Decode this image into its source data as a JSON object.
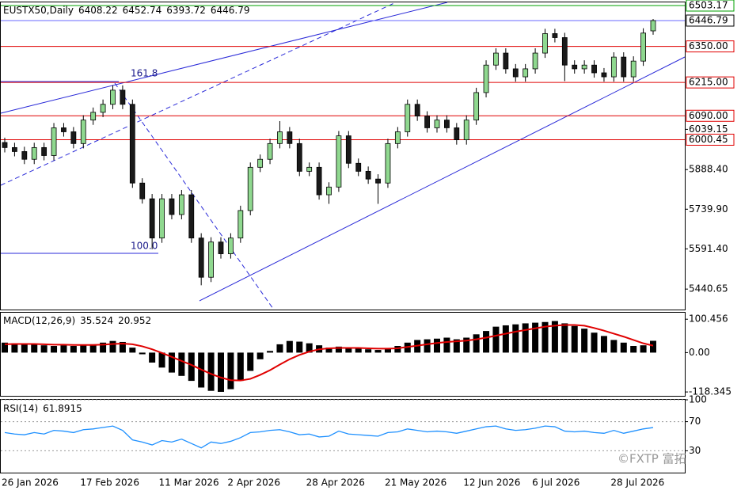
{
  "chart_data": [
    {
      "type": "candlestick",
      "title": "EUSTX50,Daily",
      "categories": [
        "26 Jan 2026",
        null,
        null,
        null,
        null,
        null,
        null,
        null,
        "17 Feb 2026",
        null,
        null,
        null,
        null,
        null,
        null,
        null,
        "11 Mar 2026",
        null,
        null,
        null,
        null,
        null,
        null,
        "2 Apr 2026",
        null,
        null,
        null,
        null,
        null,
        null,
        null,
        "28 Apr 2026",
        null,
        null,
        null,
        null,
        null,
        null,
        null,
        "21 May 2026",
        null,
        null,
        null,
        null,
        null,
        null,
        null,
        "12 Jun 2026",
        null,
        null,
        null,
        null,
        null,
        null,
        "6 Jul 2026",
        null,
        null,
        null,
        null,
        null,
        null,
        null,
        "28 Jul 2026",
        null,
        null,
        null,
        null
      ],
      "open": [
        5990,
        5971,
        5956,
        5927,
        5971,
        5941,
        6045,
        6030,
        5986,
        6074,
        6103,
        6133,
        6186,
        6133,
        5838,
        5779,
        5632,
        5779,
        5720,
        5794,
        5632,
        5485,
        5617,
        5573,
        5632,
        5735,
        5897,
        5927,
        5986,
        6030,
        5986,
        5882,
        5897,
        5794,
        5823,
        6015,
        5912,
        5882,
        5853,
        5838,
        5986,
        6030,
        6133,
        6089,
        6045,
        6074,
        6045,
        6000,
        6074,
        6177,
        6280,
        6325,
        6266,
        6236,
        6266,
        6325,
        6398,
        6383,
        6280,
        6266,
        6280,
        6251,
        6236,
        6310,
        6236,
        6295,
        6408.22
      ],
      "high": [
        6008,
        5989,
        5974,
        5989,
        5989,
        6063,
        6063,
        6048,
        6092,
        6121,
        6151,
        6204,
        6204,
        6151,
        5856,
        5797,
        5797,
        5797,
        5812,
        5812,
        5650,
        5635,
        5635,
        5650,
        5753,
        5915,
        5945,
        6004,
        6070,
        6048,
        6004,
        5915,
        5915,
        5841,
        6033,
        6033,
        5930,
        5900,
        5871,
        6004,
        6048,
        6151,
        6151,
        6107,
        6092,
        6092,
        6063,
        6092,
        6195,
        6298,
        6343,
        6343,
        6284,
        6284,
        6343,
        6416,
        6416,
        6401,
        6298,
        6298,
        6298,
        6269,
        6328,
        6328,
        6313,
        6418,
        6452.74
      ],
      "low": [
        5953,
        5938,
        5909,
        5909,
        5923,
        5923,
        6012,
        5968,
        5968,
        6056,
        6085,
        6115,
        6115,
        5820,
        5761,
        5590,
        5614,
        5702,
        5702,
        5614,
        5455,
        5467,
        5555,
        5555,
        5614,
        5717,
        5879,
        5909,
        5968,
        5968,
        5864,
        5864,
        5776,
        5760,
        5805,
        5894,
        5864,
        5835,
        5760,
        5820,
        5968,
        6012,
        6071,
        6027,
        6027,
        6027,
        5982,
        5982,
        6056,
        6159,
        6262,
        6248,
        6218,
        6218,
        6248,
        6307,
        6365,
        6220,
        6248,
        6248,
        6233,
        6218,
        6218,
        6218,
        6218,
        6277,
        6393.72
      ],
      "close": [
        5971,
        5956,
        5927,
        5971,
        5941,
        6045,
        6030,
        5986,
        6074,
        6103,
        6133,
        6186,
        6133,
        5838,
        5779,
        5632,
        5779,
        5720,
        5794,
        5632,
        5485,
        5617,
        5573,
        5632,
        5735,
        5897,
        5927,
        5986,
        6030,
        5986,
        5882,
        5897,
        5794,
        5823,
        6015,
        5912,
        5882,
        5853,
        5838,
        5986,
        6030,
        6133,
        6089,
        6045,
        6074,
        6045,
        6000,
        6074,
        6177,
        6280,
        6325,
        6266,
        6236,
        6266,
        6325,
        6398,
        6383,
        6280,
        6266,
        6280,
        6251,
        6236,
        6310,
        6236,
        6295,
        6400,
        6446.79
      ],
      "up_color": "#8fd88f",
      "down_color": "#1a1a1a",
      "ylim": [
        5364,
        6515
      ],
      "yticks": [
        5440.65,
        {
          "value": 5591.4,
          "label": "5591.40"
        },
        {
          "value": 5739.9,
          "label": "5739.90"
        },
        {
          "value": 5888.4,
          "label": "5888.40"
        },
        6039.15
      ],
      "levels": [
        {
          "value": 6503.17,
          "label": "6503.17",
          "color": "#00a000"
        },
        {
          "value": 6350,
          "label": "6350.00",
          "color": "#e00000"
        },
        {
          "value": 6215,
          "label": "6215.00",
          "color": "#e00000"
        },
        {
          "value": 6090,
          "label": "6090.00",
          "color": "#e00000"
        },
        {
          "value": 6000.45,
          "label": "6000.45",
          "color": "#e00000"
        }
      ],
      "annotations": [
        "161.8",
        "100.0"
      ],
      "watermark": "©FXTP 富拓"
    },
    {
      "type": "macd",
      "title": "MACD(12,26,9)",
      "values": [
        30,
        28,
        25,
        24,
        22,
        20,
        22,
        20,
        22,
        25,
        30,
        35,
        32,
        15,
        -5,
        -30,
        -45,
        -60,
        -70,
        -85,
        -105,
        -115,
        -118,
        -110,
        -85,
        -55,
        -20,
        5,
        25,
        35,
        33,
        28,
        22,
        15,
        18,
        14,
        12,
        10,
        8,
        12,
        20,
        30,
        38,
        40,
        42,
        45,
        40,
        45,
        55,
        65,
        78,
        82,
        85,
        88,
        90,
        92,
        95,
        88,
        80,
        72,
        60,
        50,
        38,
        30,
        20,
        22,
        35.524
      ],
      "signal": [
        25,
        26,
        26,
        26,
        25,
        24,
        24,
        23,
        23,
        23,
        24,
        26,
        27,
        25,
        19,
        10,
        -1,
        -13,
        -25,
        -37,
        -51,
        -64,
        -75,
        -83,
        -84,
        -79,
        -67,
        -53,
        -36,
        -20,
        -7,
        3,
        10,
        13,
        14,
        14,
        14,
        13,
        12,
        12,
        13,
        17,
        21,
        25,
        29,
        32,
        34,
        36,
        40,
        45,
        51,
        57,
        63,
        68,
        73,
        78,
        81,
        83,
        83,
        81,
        74,
        66,
        57,
        48,
        38,
        28,
        20.952
      ],
      "color": "#000000",
      "signal_color": "#e00000",
      "ylim": [
        -130,
        120
      ],
      "yticks": [
        100.456,
        {
          "value": 0,
          "label": "0.00"
        },
        -118.345
      ]
    },
    {
      "type": "line",
      "title": "RSI(14)",
      "values": [
        55,
        53,
        52,
        55,
        53,
        58,
        57,
        55,
        59,
        60,
        62,
        64,
        58,
        45,
        42,
        38,
        44,
        42,
        46,
        40,
        34,
        42,
        40,
        43,
        48,
        55,
        56,
        58,
        59,
        56,
        52,
        53,
        49,
        50,
        57,
        53,
        52,
        51,
        50,
        55,
        56,
        60,
        58,
        56,
        57,
        56,
        54,
        57,
        60,
        63,
        64,
        60,
        58,
        59,
        61,
        64,
        63,
        57,
        56,
        57,
        55,
        54,
        58,
        54,
        57,
        60,
        61.8915
      ],
      "color": "#1e90ff",
      "ylim": [
        0,
        100
      ],
      "yticks": [
        100,
        70,
        30
      ],
      "grid": "dotted"
    }
  ]
}
